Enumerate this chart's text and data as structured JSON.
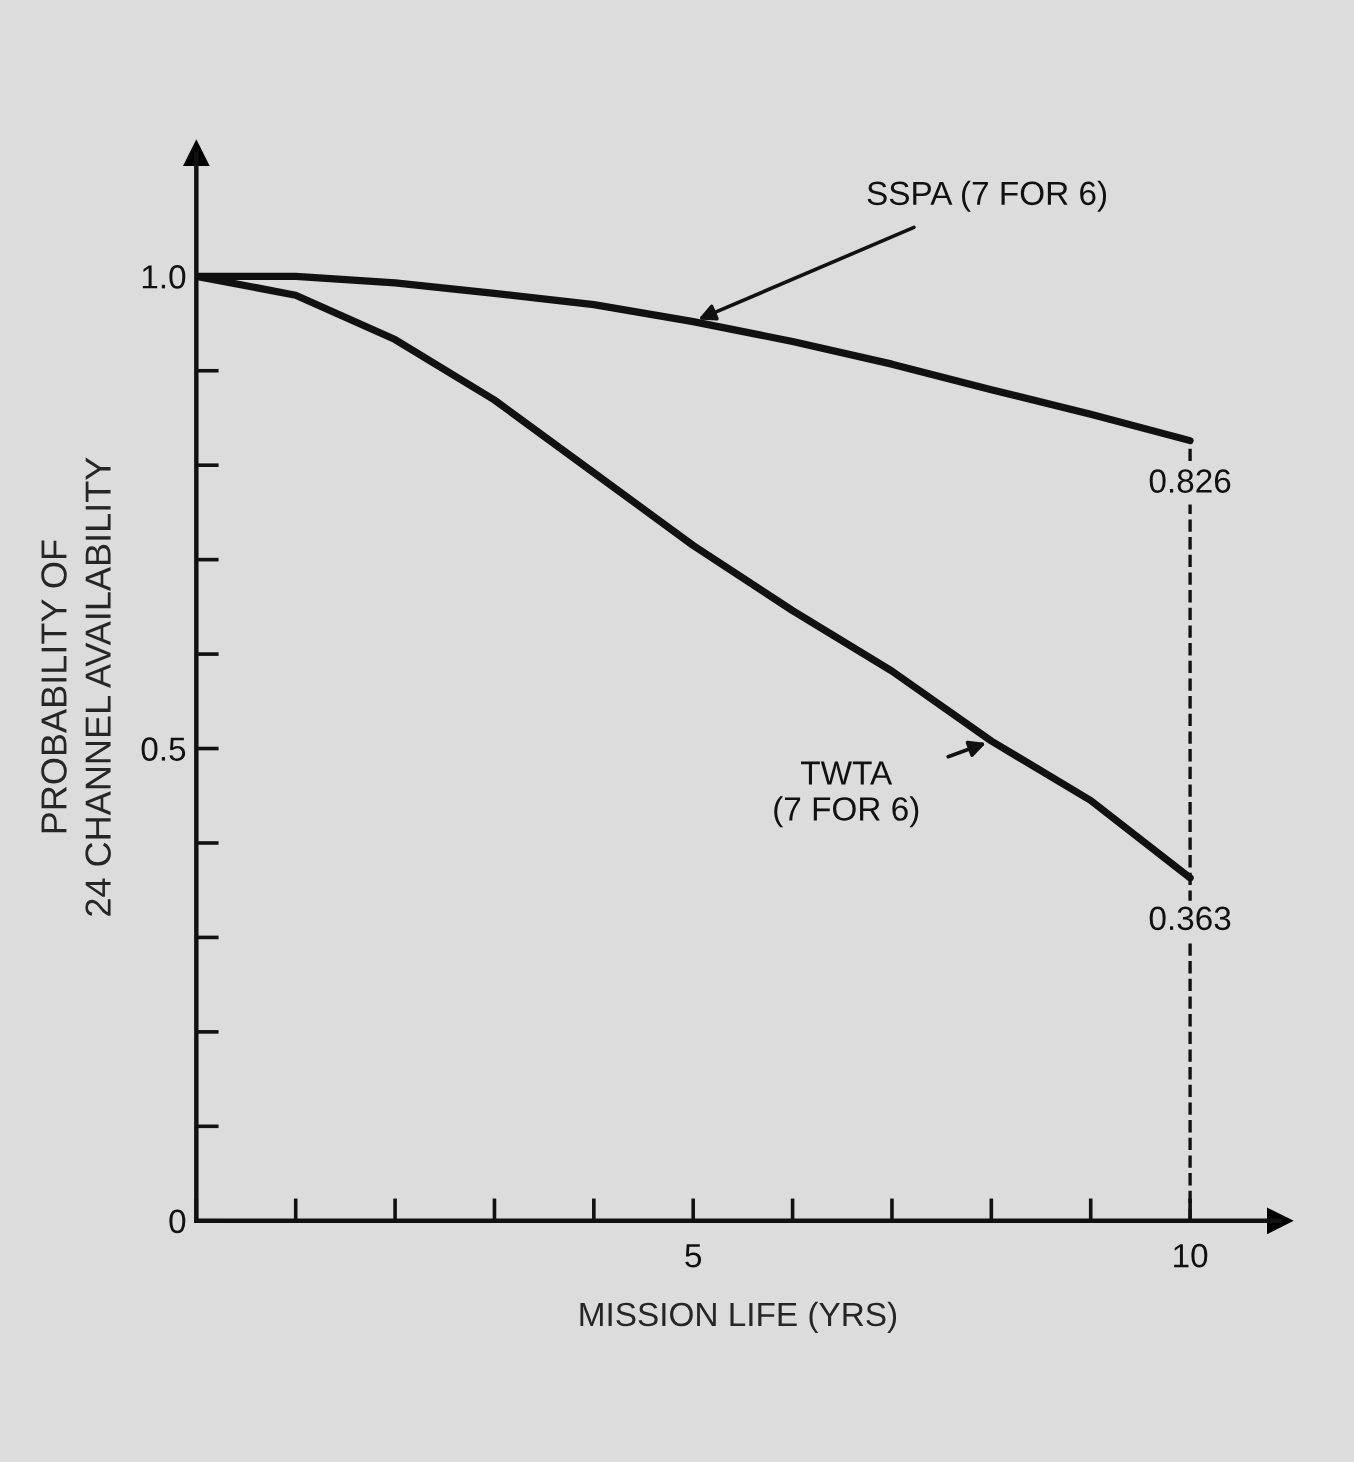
{
  "chart_data": {
    "type": "line",
    "xlabel": "MISSION LIFE (YRS)",
    "ylabel": "PROBABILITY OF\n24 CHANNEL AVAILABILITY",
    "x": [
      0,
      1,
      2,
      3,
      4,
      5,
      6,
      7,
      8,
      9,
      10
    ],
    "series": [
      {
        "name": "SSPA (7 FOR 6)",
        "color": "#111111",
        "values": [
          1.0,
          1.0,
          0.993,
          0.982,
          0.97,
          0.952,
          0.931,
          0.907,
          0.88,
          0.854,
          0.826
        ],
        "value_labels": [
          null,
          null,
          null,
          null,
          null,
          null,
          null,
          null,
          null,
          null,
          "0.826"
        ]
      },
      {
        "name": "TWTA\n(7 FOR 6)",
        "color": "#111111",
        "values": [
          1.0,
          0.98,
          0.933,
          0.869,
          0.792,
          0.715,
          0.646,
          0.582,
          0.508,
          0.445,
          0.363
        ],
        "value_labels": [
          null,
          null,
          null,
          null,
          null,
          null,
          null,
          null,
          null,
          null,
          "0.363"
        ]
      }
    ],
    "xlim": [
      0,
      10.9
    ],
    "ylim": [
      0,
      1.13
    ],
    "xticks": [
      {
        "value": 0,
        "label": null
      },
      {
        "value": 1,
        "label": null
      },
      {
        "value": 2,
        "label": null
      },
      {
        "value": 3,
        "label": null
      },
      {
        "value": 4,
        "label": null
      },
      5,
      {
        "value": 6,
        "label": null
      },
      {
        "value": 7,
        "label": null
      },
      {
        "value": 8,
        "label": null
      },
      {
        "value": 9,
        "label": null
      },
      10
    ],
    "yticks": [
      0,
      {
        "value": 0.1,
        "label": null
      },
      {
        "value": 0.2,
        "label": null
      },
      {
        "value": 0.3,
        "label": null
      },
      {
        "value": 0.4,
        "label": null
      },
      0.5,
      {
        "value": 0.6,
        "label": null
      },
      {
        "value": 0.7,
        "label": null
      },
      {
        "value": 0.8,
        "label": null
      },
      {
        "value": 0.9,
        "label": null
      },
      {
        "value": 1.0,
        "label": "1.0"
      }
    ],
    "ref_lines": [
      {
        "axis": "x",
        "value": 10,
        "line_style": "dashed",
        "color": "#111111"
      }
    ],
    "grid": false,
    "legend": false,
    "marker": "none",
    "line_style": "solid"
  }
}
